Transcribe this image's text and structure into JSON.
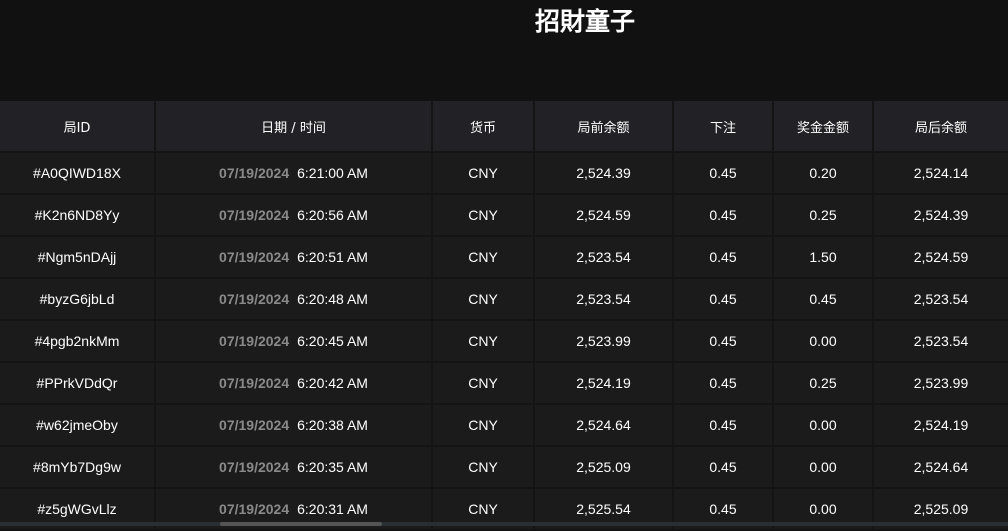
{
  "title": "招財童子",
  "columns": [
    "局ID",
    "日期 / 时间",
    "货币",
    "局前余额",
    "下注",
    "奖金金额",
    "局后余额"
  ],
  "rows": [
    {
      "id": "#A0QIWD18X",
      "date": "07/19/2024",
      "time": "6:21:00 AM",
      "currency": "CNY",
      "before": "2,524.39",
      "bet": "0.45",
      "win": "0.20",
      "after": "2,524.14"
    },
    {
      "id": "#K2n6ND8Yy",
      "date": "07/19/2024",
      "time": "6:20:56 AM",
      "currency": "CNY",
      "before": "2,524.59",
      "bet": "0.45",
      "win": "0.25",
      "after": "2,524.39"
    },
    {
      "id": "#Ngm5nDAjj",
      "date": "07/19/2024",
      "time": "6:20:51 AM",
      "currency": "CNY",
      "before": "2,523.54",
      "bet": "0.45",
      "win": "1.50",
      "after": "2,524.59"
    },
    {
      "id": "#byzG6jbLd",
      "date": "07/19/2024",
      "time": "6:20:48 AM",
      "currency": "CNY",
      "before": "2,523.54",
      "bet": "0.45",
      "win": "0.45",
      "after": "2,523.54"
    },
    {
      "id": "#4pgb2nkMm",
      "date": "07/19/2024",
      "time": "6:20:45 AM",
      "currency": "CNY",
      "before": "2,523.99",
      "bet": "0.45",
      "win": "0.00",
      "after": "2,523.54"
    },
    {
      "id": "#PPrkVDdQr",
      "date": "07/19/2024",
      "time": "6:20:42 AM",
      "currency": "CNY",
      "before": "2,524.19",
      "bet": "0.45",
      "win": "0.25",
      "after": "2,523.99"
    },
    {
      "id": "#w62jmeOby",
      "date": "07/19/2024",
      "time": "6:20:38 AM",
      "currency": "CNY",
      "before": "2,524.64",
      "bet": "0.45",
      "win": "0.00",
      "after": "2,524.19"
    },
    {
      "id": "#8mYb7Dg9w",
      "date": "07/19/2024",
      "time": "6:20:35 AM",
      "currency": "CNY",
      "before": "2,525.09",
      "bet": "0.45",
      "win": "0.00",
      "after": "2,524.64"
    },
    {
      "id": "#z5gWGvLlz",
      "date": "07/19/2024",
      "time": "6:20:31 AM",
      "currency": "CNY",
      "before": "2,525.54",
      "bet": "0.45",
      "win": "0.00",
      "after": "2,525.09"
    }
  ]
}
